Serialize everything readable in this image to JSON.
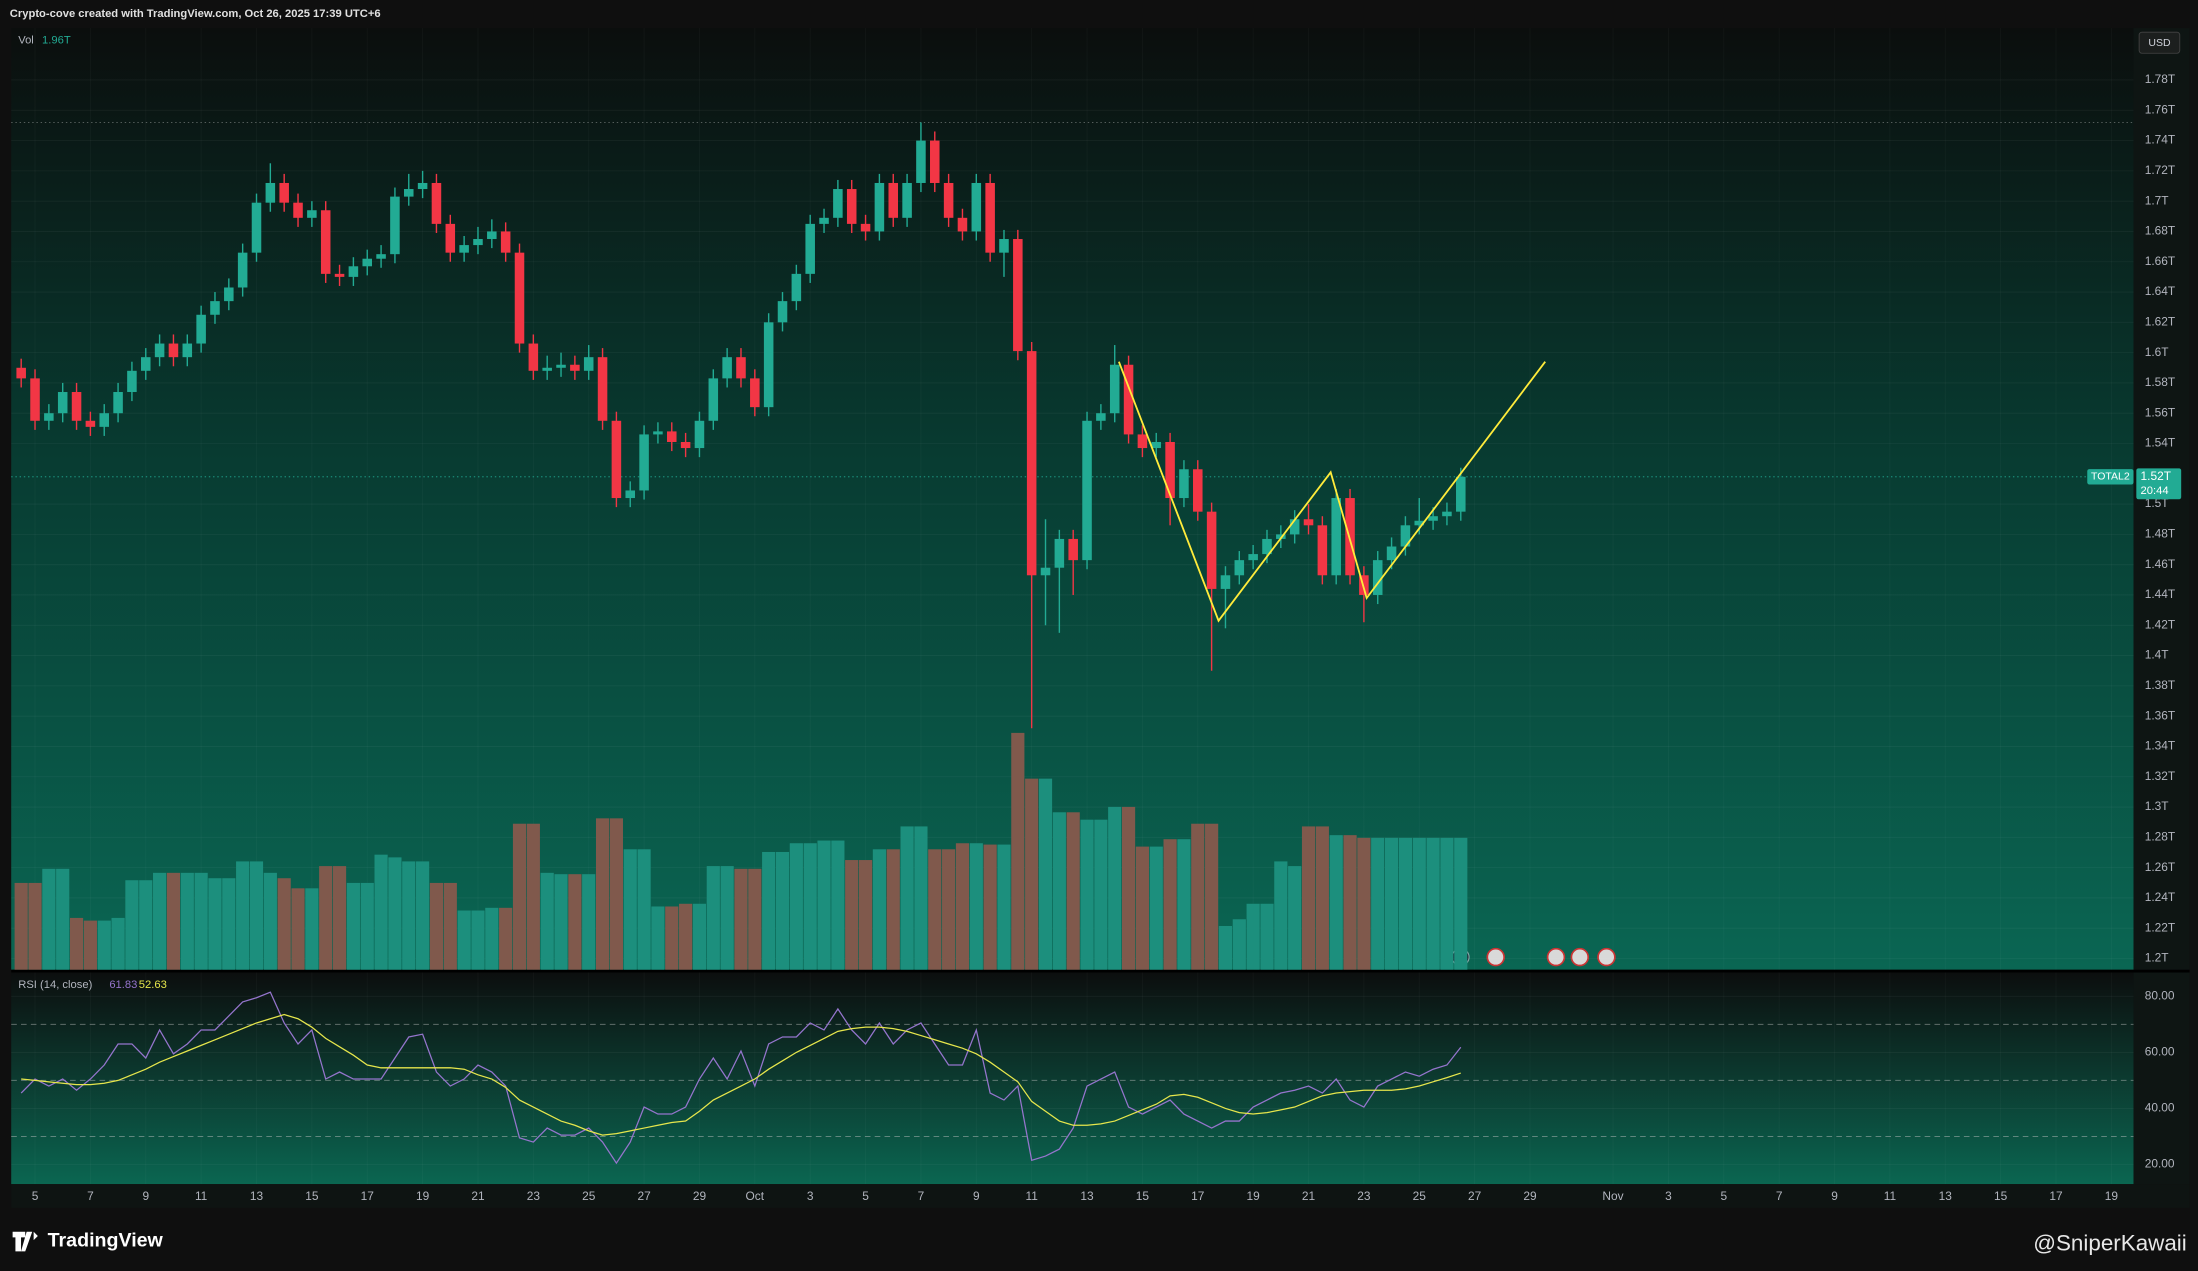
{
  "header": {
    "caption": "Crypto-cove created with TradingView.com, Oct 26, 2025 17:39 UTC+6"
  },
  "footer": {
    "logo": "TradingView",
    "watermark": "@SniperKawaii"
  },
  "chart_data": [
    {
      "type": "candlestick",
      "symbol": "TOTAL2",
      "currency": "USD",
      "last_price_label": "1.52T",
      "countdown": "20:44",
      "up_color": "#22ab94",
      "down_color": "#f23645",
      "grid": true,
      "xlim": [
        -0.72,
        152.6
      ],
      "ylim": [
        1.1926,
        1.8143
      ],
      "yticks": [
        {
          "value": 1.2,
          "label": "1.2T"
        },
        {
          "value": 1.22,
          "label": "1.22T"
        },
        {
          "value": 1.24,
          "label": "1.24T"
        },
        {
          "value": 1.26,
          "label": "1.26T"
        },
        {
          "value": 1.28,
          "label": "1.28T"
        },
        {
          "value": 1.3,
          "label": "1.3T"
        },
        {
          "value": 1.32,
          "label": "1.32T"
        },
        {
          "value": 1.34,
          "label": "1.34T"
        },
        {
          "value": 1.36,
          "label": "1.36T"
        },
        {
          "value": 1.38,
          "label": "1.38T"
        },
        {
          "value": 1.4,
          "label": "1.4T"
        },
        {
          "value": 1.42,
          "label": "1.42T"
        },
        {
          "value": 1.44,
          "label": "1.44T"
        },
        {
          "value": 1.46,
          "label": "1.46T"
        },
        {
          "value": 1.48,
          "label": "1.48T"
        },
        {
          "value": 1.5,
          "label": "1.5T"
        },
        {
          "value": 1.54,
          "label": "1.54T"
        },
        {
          "value": 1.56,
          "label": "1.56T"
        },
        {
          "value": 1.58,
          "label": "1.58T"
        },
        {
          "value": 1.6,
          "label": "1.6T"
        },
        {
          "value": 1.62,
          "label": "1.62T"
        },
        {
          "value": 1.64,
          "label": "1.64T"
        },
        {
          "value": 1.66,
          "label": "1.66T"
        },
        {
          "value": 1.68,
          "label": "1.68T"
        },
        {
          "value": 1.7,
          "label": "1.7T"
        },
        {
          "value": 1.72,
          "label": "1.72T"
        },
        {
          "value": 1.74,
          "label": "1.74T"
        },
        {
          "value": 1.76,
          "label": "1.76T"
        },
        {
          "value": 1.78,
          "label": "1.78T"
        }
      ],
      "open": [
        1.59,
        1.583,
        1.555,
        1.56,
        1.574,
        1.555,
        1.551,
        1.56,
        1.574,
        1.588,
        1.597,
        1.606,
        1.597,
        1.606,
        1.625,
        1.634,
        1.643,
        1.666,
        1.699,
        1.712,
        1.699,
        1.689,
        1.694,
        1.652,
        1.65,
        1.657,
        1.662,
        1.665,
        1.703,
        1.708,
        1.712,
        1.685,
        1.666,
        1.671,
        1.675,
        1.68,
        1.666,
        1.606,
        1.588,
        1.59,
        1.592,
        1.588,
        1.597,
        1.555,
        1.504,
        1.509,
        1.546,
        1.548,
        1.541,
        1.537,
        1.555,
        1.583,
        1.597,
        1.583,
        1.564,
        1.62,
        1.634,
        1.652,
        1.685,
        1.689,
        1.708,
        1.685,
        1.68,
        1.712,
        1.689,
        1.712,
        1.74,
        1.712,
        1.689,
        1.68,
        1.712,
        1.666,
        1.675,
        1.601,
        1.453,
        1.458,
        1.477,
        1.463,
        1.555,
        1.56,
        1.592,
        1.546,
        1.537,
        1.541,
        1.504,
        1.523,
        1.495,
        1.444,
        1.453,
        1.463,
        1.467,
        1.477,
        1.48,
        1.49,
        1.486,
        1.453,
        1.504,
        1.453,
        1.44,
        1.463,
        1.472,
        1.486,
        1.489,
        1.492,
        1.495
      ],
      "high": [
        1.596,
        1.589,
        1.566,
        1.58,
        1.58,
        1.561,
        1.566,
        1.58,
        1.594,
        1.603,
        1.612,
        1.612,
        1.612,
        1.631,
        1.64,
        1.649,
        1.672,
        1.705,
        1.725,
        1.718,
        1.705,
        1.7,
        1.7,
        1.658,
        1.663,
        1.668,
        1.671,
        1.709,
        1.718,
        1.72,
        1.718,
        1.691,
        1.677,
        1.683,
        1.688,
        1.686,
        1.672,
        1.612,
        1.598,
        1.6,
        1.598,
        1.605,
        1.603,
        1.561,
        1.515,
        1.552,
        1.554,
        1.554,
        1.547,
        1.561,
        1.589,
        1.603,
        1.603,
        1.589,
        1.626,
        1.64,
        1.658,
        1.691,
        1.695,
        1.714,
        1.714,
        1.691,
        1.718,
        1.718,
        1.718,
        1.752,
        1.746,
        1.718,
        1.695,
        1.718,
        1.718,
        1.681,
        1.681,
        1.607,
        1.49,
        1.483,
        1.483,
        1.561,
        1.566,
        1.605,
        1.598,
        1.552,
        1.547,
        1.547,
        1.529,
        1.529,
        1.501,
        1.459,
        1.469,
        1.473,
        1.483,
        1.486,
        1.496,
        1.5,
        1.492,
        1.51,
        1.51,
        1.459,
        1.469,
        1.478,
        1.492,
        1.504,
        1.498,
        1.501,
        1.524
      ],
      "low": [
        1.577,
        1.549,
        1.549,
        1.554,
        1.549,
        1.545,
        1.545,
        1.554,
        1.568,
        1.582,
        1.591,
        1.591,
        1.591,
        1.6,
        1.619,
        1.628,
        1.637,
        1.66,
        1.693,
        1.693,
        1.683,
        1.683,
        1.646,
        1.644,
        1.644,
        1.651,
        1.656,
        1.659,
        1.697,
        1.702,
        1.679,
        1.66,
        1.66,
        1.665,
        1.669,
        1.66,
        1.6,
        1.582,
        1.582,
        1.584,
        1.582,
        1.582,
        1.549,
        1.498,
        1.498,
        1.503,
        1.54,
        1.535,
        1.531,
        1.531,
        1.549,
        1.577,
        1.577,
        1.558,
        1.558,
        1.614,
        1.628,
        1.646,
        1.679,
        1.683,
        1.679,
        1.674,
        1.674,
        1.683,
        1.683,
        1.706,
        1.706,
        1.683,
        1.674,
        1.674,
        1.66,
        1.65,
        1.595,
        1.352,
        1.42,
        1.415,
        1.44,
        1.457,
        1.549,
        1.554,
        1.54,
        1.531,
        1.531,
        1.486,
        1.498,
        1.489,
        1.39,
        1.418,
        1.447,
        1.457,
        1.461,
        1.471,
        1.474,
        1.48,
        1.447,
        1.447,
        1.447,
        1.422,
        1.434,
        1.457,
        1.466,
        1.48,
        1.483,
        1.486,
        1.489
      ],
      "close": [
        1.583,
        1.555,
        1.56,
        1.574,
        1.555,
        1.551,
        1.56,
        1.574,
        1.588,
        1.597,
        1.606,
        1.597,
        1.606,
        1.625,
        1.634,
        1.643,
        1.666,
        1.699,
        1.712,
        1.699,
        1.689,
        1.694,
        1.652,
        1.65,
        1.657,
        1.662,
        1.665,
        1.703,
        1.708,
        1.712,
        1.685,
        1.666,
        1.671,
        1.675,
        1.68,
        1.666,
        1.606,
        1.588,
        1.59,
        1.592,
        1.588,
        1.597,
        1.555,
        1.504,
        1.509,
        1.546,
        1.548,
        1.541,
        1.537,
        1.555,
        1.583,
        1.597,
        1.583,
        1.564,
        1.62,
        1.634,
        1.652,
        1.685,
        1.689,
        1.708,
        1.685,
        1.68,
        1.712,
        1.689,
        1.712,
        1.74,
        1.712,
        1.689,
        1.68,
        1.712,
        1.666,
        1.675,
        1.601,
        1.453,
        1.458,
        1.477,
        1.463,
        1.555,
        1.56,
        1.592,
        1.546,
        1.537,
        1.541,
        1.504,
        1.523,
        1.495,
        1.444,
        1.453,
        1.463,
        1.467,
        1.477,
        1.48,
        1.49,
        1.486,
        1.453,
        1.504,
        1.453,
        1.44,
        1.463,
        1.472,
        1.486,
        1.489,
        1.492,
        1.495,
        1.518
      ],
      "volume": {
        "name": "Vol",
        "last_label": "1.96T",
        "up_color": "#1c8f7d",
        "down_color": "#80594c",
        "values": [
          1.29,
          1.29,
          1.5,
          1.5,
          0.77,
          0.73,
          0.73,
          0.77,
          1.33,
          1.33,
          1.44,
          1.44,
          1.44,
          1.44,
          1.36,
          1.36,
          1.61,
          1.61,
          1.44,
          1.36,
          1.21,
          1.21,
          1.54,
          1.54,
          1.29,
          1.29,
          1.71,
          1.67,
          1.61,
          1.61,
          1.29,
          1.29,
          0.88,
          0.88,
          0.92,
          0.92,
          2.17,
          2.17,
          1.44,
          1.42,
          1.42,
          1.42,
          2.25,
          2.25,
          1.79,
          1.79,
          0.94,
          0.94,
          0.98,
          0.98,
          1.54,
          1.54,
          1.5,
          1.5,
          1.75,
          1.75,
          1.88,
          1.88,
          1.92,
          1.92,
          1.63,
          1.63,
          1.79,
          1.79,
          2.13,
          2.13,
          1.79,
          1.79,
          1.88,
          1.88,
          1.86,
          1.86,
          3.52,
          2.84,
          2.84,
          2.34,
          2.34,
          2.23,
          2.23,
          2.42,
          2.42,
          1.83,
          1.83,
          1.94,
          1.94,
          2.17,
          2.17,
          0.65,
          0.75,
          0.98,
          0.98,
          1.61,
          1.54,
          2.13,
          2.13,
          2.0,
          2.0,
          1.96,
          1.96,
          1.96,
          1.96,
          1.96,
          1.96,
          1.96,
          1.96
        ]
      },
      "drawing": {
        "color": "#ffeb3b",
        "x": [
          79.3,
          86.5,
          94.6,
          97.2,
          110.1
        ],
        "y": [
          1.594,
          1.423,
          1.521,
          1.438,
          1.594
        ]
      }
    },
    {
      "type": "line",
      "title": "RSI (14, close)",
      "grid": true,
      "xlim": [
        -0.72,
        152.6
      ],
      "ylim": [
        13,
        88.5
      ],
      "yticks": [
        {
          "value": 20,
          "label": "20.00"
        },
        {
          "value": 40,
          "label": "40.00"
        },
        {
          "value": 60,
          "label": "60.00"
        },
        {
          "value": 80,
          "label": "80.00"
        }
      ],
      "levels": [
        70,
        50,
        30
      ],
      "xticks": [
        {
          "value": 1,
          "label": "5"
        },
        {
          "value": 5,
          "label": "7"
        },
        {
          "value": 9,
          "label": "9"
        },
        {
          "value": 13,
          "label": "11"
        },
        {
          "value": 17,
          "label": "13"
        },
        {
          "value": 21,
          "label": "15"
        },
        {
          "value": 25,
          "label": "17"
        },
        {
          "value": 29,
          "label": "19"
        },
        {
          "value": 33,
          "label": "21"
        },
        {
          "value": 37,
          "label": "23"
        },
        {
          "value": 41,
          "label": "25"
        },
        {
          "value": 45,
          "label": "27"
        },
        {
          "value": 49,
          "label": "29"
        },
        {
          "value": 53,
          "label": "Oct"
        },
        {
          "value": 57,
          "label": "3"
        },
        {
          "value": 61,
          "label": "5"
        },
        {
          "value": 65,
          "label": "7"
        },
        {
          "value": 69,
          "label": "9"
        },
        {
          "value": 73,
          "label": "11"
        },
        {
          "value": 77,
          "label": "13"
        },
        {
          "value": 81,
          "label": "15"
        },
        {
          "value": 85,
          "label": "17"
        },
        {
          "value": 89,
          "label": "19"
        },
        {
          "value": 93,
          "label": "21"
        },
        {
          "value": 97,
          "label": "23"
        },
        {
          "value": 101,
          "label": "25"
        },
        {
          "value": 105,
          "label": "27"
        },
        {
          "value": 109,
          "label": "29"
        },
        {
          "value": 115,
          "label": "Nov"
        },
        {
          "value": 119,
          "label": "3"
        },
        {
          "value": 123,
          "label": "5"
        },
        {
          "value": 127,
          "label": "7"
        },
        {
          "value": 131,
          "label": "9"
        },
        {
          "value": 135,
          "label": "11"
        },
        {
          "value": 139,
          "label": "13"
        },
        {
          "value": 143,
          "label": "15"
        },
        {
          "value": 147,
          "label": "17"
        },
        {
          "value": 151,
          "label": "19"
        }
      ],
      "series": [
        {
          "color": "#9575cd",
          "values": [
            45.5,
            50.5,
            48,
            50.5,
            46.5,
            50.5,
            55.5,
            63,
            63,
            58,
            68,
            59.5,
            63,
            68,
            68,
            73,
            78,
            79.5,
            81.5,
            70.5,
            63,
            68,
            50.5,
            53,
            50.5,
            50.5,
            50.5,
            58,
            65.5,
            66.5,
            53,
            48,
            50.5,
            55.5,
            53,
            48,
            29.5,
            28,
            33,
            30.5,
            30.5,
            33,
            28,
            20.5,
            28,
            40.5,
            38,
            38,
            40.5,
            50.5,
            58,
            50.5,
            60.5,
            48,
            63,
            65.5,
            65.5,
            70.5,
            68,
            75.5,
            68,
            63,
            70.5,
            63,
            68,
            70.5,
            63,
            55.5,
            55.5,
            68,
            45.5,
            43,
            48,
            21.5,
            23,
            25.5,
            33,
            48,
            50.5,
            53,
            40.5,
            38,
            40.5,
            43,
            38,
            35.5,
            33,
            35.5,
            35.5,
            40.5,
            43,
            45.5,
            46.5,
            48,
            45.5,
            50.5,
            43,
            40.5,
            48,
            50.5,
            53,
            51.5,
            54,
            55.5,
            61.83
          ]
        },
        {
          "color": "#e6e64c",
          "values": [
            50.5,
            50,
            49.5,
            49,
            48.5,
            48.5,
            49,
            50,
            52,
            54,
            56.5,
            58.5,
            60.5,
            62.5,
            64.5,
            66.5,
            68.5,
            70.5,
            72,
            73.5,
            72,
            69,
            65,
            62,
            59,
            55.5,
            54.5,
            54.5,
            54.5,
            54.5,
            54.5,
            54.5,
            54,
            52,
            50.5,
            47.5,
            43,
            40.5,
            38,
            35.5,
            34,
            32,
            30.5,
            31,
            32,
            33,
            34,
            35,
            35.5,
            39,
            43,
            45.5,
            48,
            50.5,
            54,
            57,
            60,
            62.5,
            65,
            67.5,
            68.5,
            69,
            69,
            68.5,
            67.5,
            66,
            64.5,
            63,
            61.5,
            59.5,
            56.5,
            53,
            49.5,
            42.5,
            39,
            35.5,
            34,
            34,
            34.5,
            35.5,
            37.5,
            39.5,
            41.5,
            44.5,
            45,
            44,
            42,
            40,
            38.5,
            38,
            38.5,
            39.5,
            40.5,
            42.5,
            44.5,
            45.5,
            46,
            46.5,
            46.5,
            46.5,
            47,
            48,
            49.5,
            51,
            52.63
          ]
        }
      ]
    }
  ]
}
